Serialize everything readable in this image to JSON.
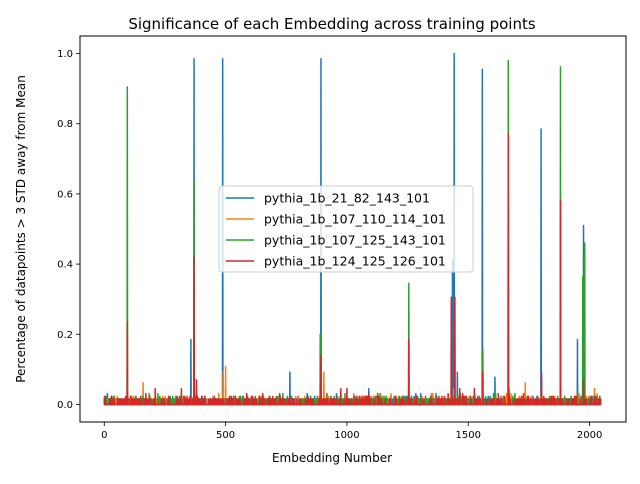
{
  "chart_data": {
    "type": "line",
    "title": "Significance of each Embedding across training points",
    "xlabel": "Embedding Number",
    "ylabel": "Percentage of datapoints > 3 STD away from Mean",
    "xlim": [
      -100,
      2150
    ],
    "ylim": [
      -0.05,
      1.05
    ],
    "x_ticks": [
      0,
      500,
      1000,
      1500,
      2000
    ],
    "x_tick_labels": [
      "0",
      "500",
      "1000",
      "1500",
      "2000"
    ],
    "y_ticks": [
      0.0,
      0.2,
      0.4,
      0.6,
      0.8,
      1.0
    ],
    "y_tick_labels": [
      "0.0",
      "0.2",
      "0.4",
      "0.6",
      "0.8",
      "1.0"
    ],
    "grid": false,
    "legend_position": "center-right",
    "embedding_count": 2048,
    "series": [
      {
        "name": "pythia_1b_21_82_143_101",
        "color": "#1f77b4",
        "peaks": [
          [
            357,
            0.185
          ],
          [
            370,
            0.985
          ],
          [
            488,
            0.985
          ],
          [
            765,
            0.092
          ],
          [
            893,
            0.985
          ],
          [
            1090,
            0.045
          ],
          [
            1435,
            0.41
          ],
          [
            1442,
            1.0
          ],
          [
            1455,
            0.092
          ],
          [
            1610,
            0.078
          ],
          [
            1558,
            0.955
          ],
          [
            1668,
            0.045
          ],
          [
            1800,
            0.785
          ],
          [
            1950,
            0.185
          ],
          [
            1975,
            0.51
          ]
        ]
      },
      {
        "name": "pythia_1b_107_110_114_101",
        "color": "#ff7f0e",
        "peaks": [
          [
            0,
            0.015
          ],
          [
            160,
            0.062
          ],
          [
            500,
            0.108
          ],
          [
            490,
            0.092
          ],
          [
            905,
            0.092
          ],
          [
            1440,
            0.045
          ],
          [
            1735,
            0.062
          ],
          [
            1958,
            0.03
          ],
          [
            2020,
            0.045
          ]
        ]
      },
      {
        "name": "pythia_1b_107_125_143_101",
        "color": "#2ca02c",
        "peaks": [
          [
            95,
            0.905
          ],
          [
            370,
            0.64
          ],
          [
            890,
            0.2
          ],
          [
            1255,
            0.345
          ],
          [
            1560,
            0.155
          ],
          [
            1665,
            0.98
          ],
          [
            1880,
            0.962
          ],
          [
            1972,
            0.365
          ],
          [
            1980,
            0.46
          ]
        ]
      },
      {
        "name": "pythia_1b_124_125_126_101",
        "color": "#d62728",
        "peaks": [
          [
            95,
            0.235
          ],
          [
            370,
            0.42
          ],
          [
            380,
            0.07
          ],
          [
            210,
            0.045
          ],
          [
            318,
            0.045
          ],
          [
            893,
            0.14
          ],
          [
            975,
            0.045
          ],
          [
            1000,
            0.045
          ],
          [
            1255,
            0.185
          ],
          [
            1430,
            0.305
          ],
          [
            1445,
            0.305
          ],
          [
            1465,
            0.045
          ],
          [
            1525,
            0.045
          ],
          [
            1560,
            0.092
          ],
          [
            1665,
            0.77
          ],
          [
            1802,
            0.092
          ],
          [
            1880,
            0.58
          ],
          [
            1975,
            0.07
          ]
        ]
      }
    ]
  }
}
